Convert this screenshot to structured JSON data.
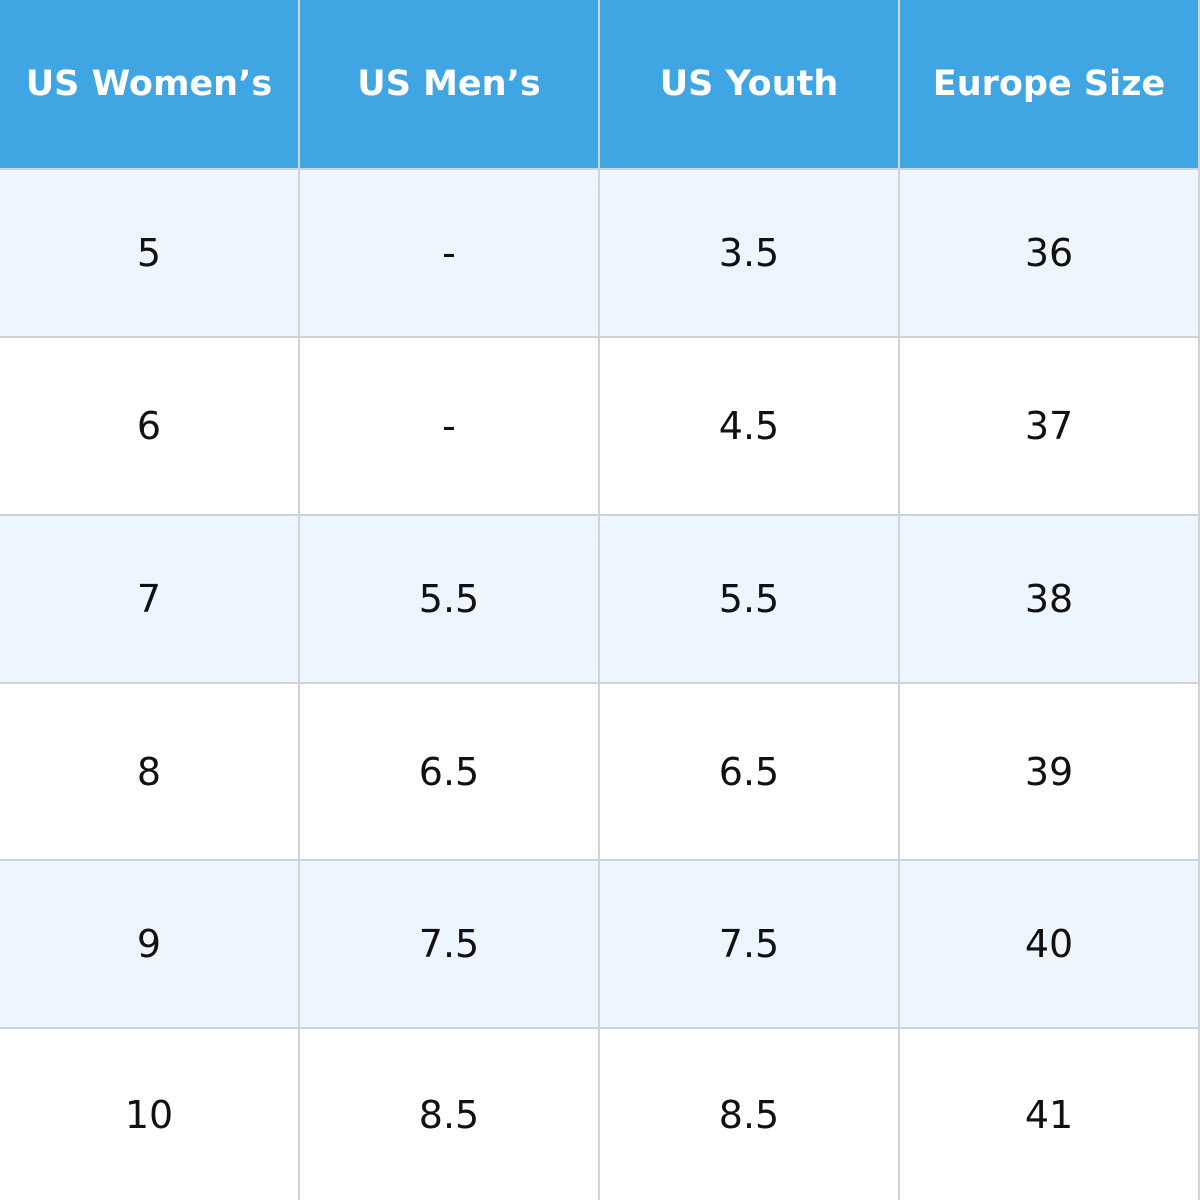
{
  "table": {
    "header": [
      "US Women’s",
      "US Men’s",
      "US Youth",
      "Europe Size"
    ],
    "rows": [
      [
        "5",
        "-",
        "3.5",
        "36"
      ],
      [
        "6",
        "-",
        "4.5",
        "37"
      ],
      [
        "7",
        "5.5",
        "5.5",
        "38"
      ],
      [
        "8",
        "6.5",
        "6.5",
        "39"
      ],
      [
        "9",
        "7.5",
        "7.5",
        "40"
      ],
      [
        "10",
        "8.5",
        "8.5",
        "41"
      ]
    ]
  }
}
